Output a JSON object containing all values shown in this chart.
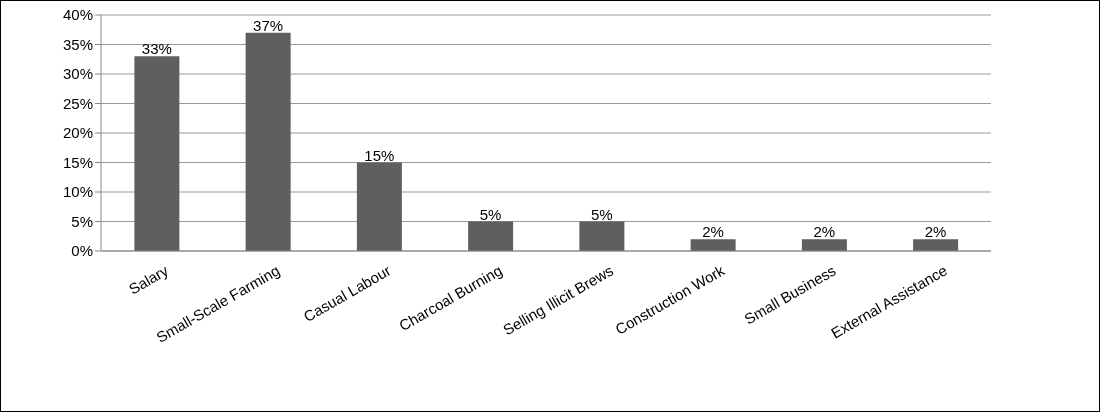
{
  "chart_data": {
    "type": "bar",
    "categories": [
      "Salary",
      "Small-Scale Farming",
      "Casual Labour",
      "Charcoal Burning",
      "Selling Illicit Brews",
      "Construction Work",
      "Small Business",
      "External Assistance"
    ],
    "values": [
      33,
      37,
      15,
      5,
      5,
      2,
      2,
      2
    ],
    "value_labels": [
      "33%",
      "37%",
      "15%",
      "5%",
      "5%",
      "2%",
      "2%",
      "2%"
    ],
    "color": "#5f5f5f",
    "ylim": [
      0,
      40
    ],
    "yticks": [
      {
        "value": 0,
        "label": "0%"
      },
      {
        "value": 5,
        "label": "5%"
      },
      {
        "value": 10,
        "label": "10%"
      },
      {
        "value": 15,
        "label": "15%"
      },
      {
        "value": 20,
        "label": "20%"
      },
      {
        "value": 25,
        "label": "25%"
      },
      {
        "value": 30,
        "label": "30%"
      },
      {
        "value": 35,
        "label": "35%"
      },
      {
        "value": 40,
        "label": "40%"
      }
    ],
    "grid": "y",
    "legend": false
  }
}
